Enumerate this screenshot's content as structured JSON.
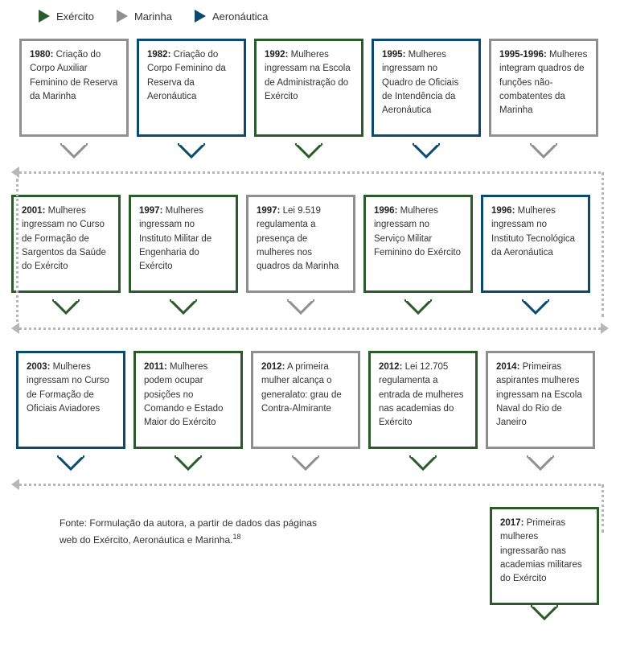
{
  "colors": {
    "exercito": "#2b5a2b",
    "marinha": "#8f8f8f",
    "aeronautica": "#0a4a6f",
    "dots": "#b7b7b7",
    "text": "#333333"
  },
  "legend": [
    {
      "label": "Exército",
      "color_key": "exercito"
    },
    {
      "label": "Marinha",
      "color_key": "marinha"
    },
    {
      "label": "Aeronáutica",
      "color_key": "aeronautica"
    }
  ],
  "rows": [
    [
      {
        "year": "1980:",
        "text": " Criação do Corpo Auxiliar Feminino de Reserva da Marinha",
        "color_key": "marinha"
      },
      {
        "year": "1982:",
        "text": " Criação do Corpo Feminino da Reserva da Aeronáutica",
        "color_key": "aeronautica"
      },
      {
        "year": "1992:",
        "text": " Mulheres ingressam na Escola de Administração do Exército",
        "color_key": "exercito"
      },
      {
        "year": "1995:",
        "text": " Mulheres ingressam no Quadro de Oficiais de Intendência da Aeronáutica",
        "color_key": "aeronautica"
      },
      {
        "year": "1995-1996:",
        "text": " Mulheres integram quadros de funções não-combatentes da Marinha",
        "color_key": "marinha"
      }
    ],
    [
      {
        "year": "2001:",
        "text": " Mulheres ingressam no Curso de Formação de Sargentos da Saúde do Exército",
        "color_key": "exercito"
      },
      {
        "year": "1997:",
        "text": " Mulheres ingressam no Instituto Militar de Engenharia do Exército",
        "color_key": "exercito"
      },
      {
        "year": "1997:",
        "text": " Lei 9.519 regulamenta a presença de mulheres nos quadros da Marinha",
        "color_key": "marinha"
      },
      {
        "year": "1996:",
        "text": " Mulheres ingressam no Serviço Militar Feminino do Exército",
        "color_key": "exercito"
      },
      {
        "year": "1996:",
        "text": " Mulheres ingressam no Instituto Tecnológica da Aeronáutica",
        "color_key": "aeronautica"
      }
    ],
    [
      {
        "year": "2003:",
        "text": " Mulheres ingressam no Curso de Formação de Oficiais Aviadores",
        "color_key": "aeronautica"
      },
      {
        "year": "2011:",
        "text": " Mulheres podem ocupar posições no Comando e Estado Maior do Exército",
        "color_key": "exercito"
      },
      {
        "year": "2012:",
        "text": " A primeira mulher alcança o generalato: grau de Contra-Almirante",
        "color_key": "marinha"
      },
      {
        "year": "2012:",
        "text": " Lei 12.705 regulamenta a entrada de mulheres nas academias do Exército",
        "color_key": "exercito"
      },
      {
        "year": "2014:",
        "text": " Primeiras aspirantes mulheres ingressam na Escola Naval do Rio de Janeiro",
        "color_key": "marinha"
      }
    ]
  ],
  "final_card": {
    "year": "2017:",
    "text": " Primeiras mulheres ingressarão nas academias militares do Exército",
    "color_key": "exercito"
  },
  "source_text": "Fonte: Formulação da autora, a partir de dados das páginas web do Exército, Aeronáutica e Marinha.",
  "source_sup": "18"
}
